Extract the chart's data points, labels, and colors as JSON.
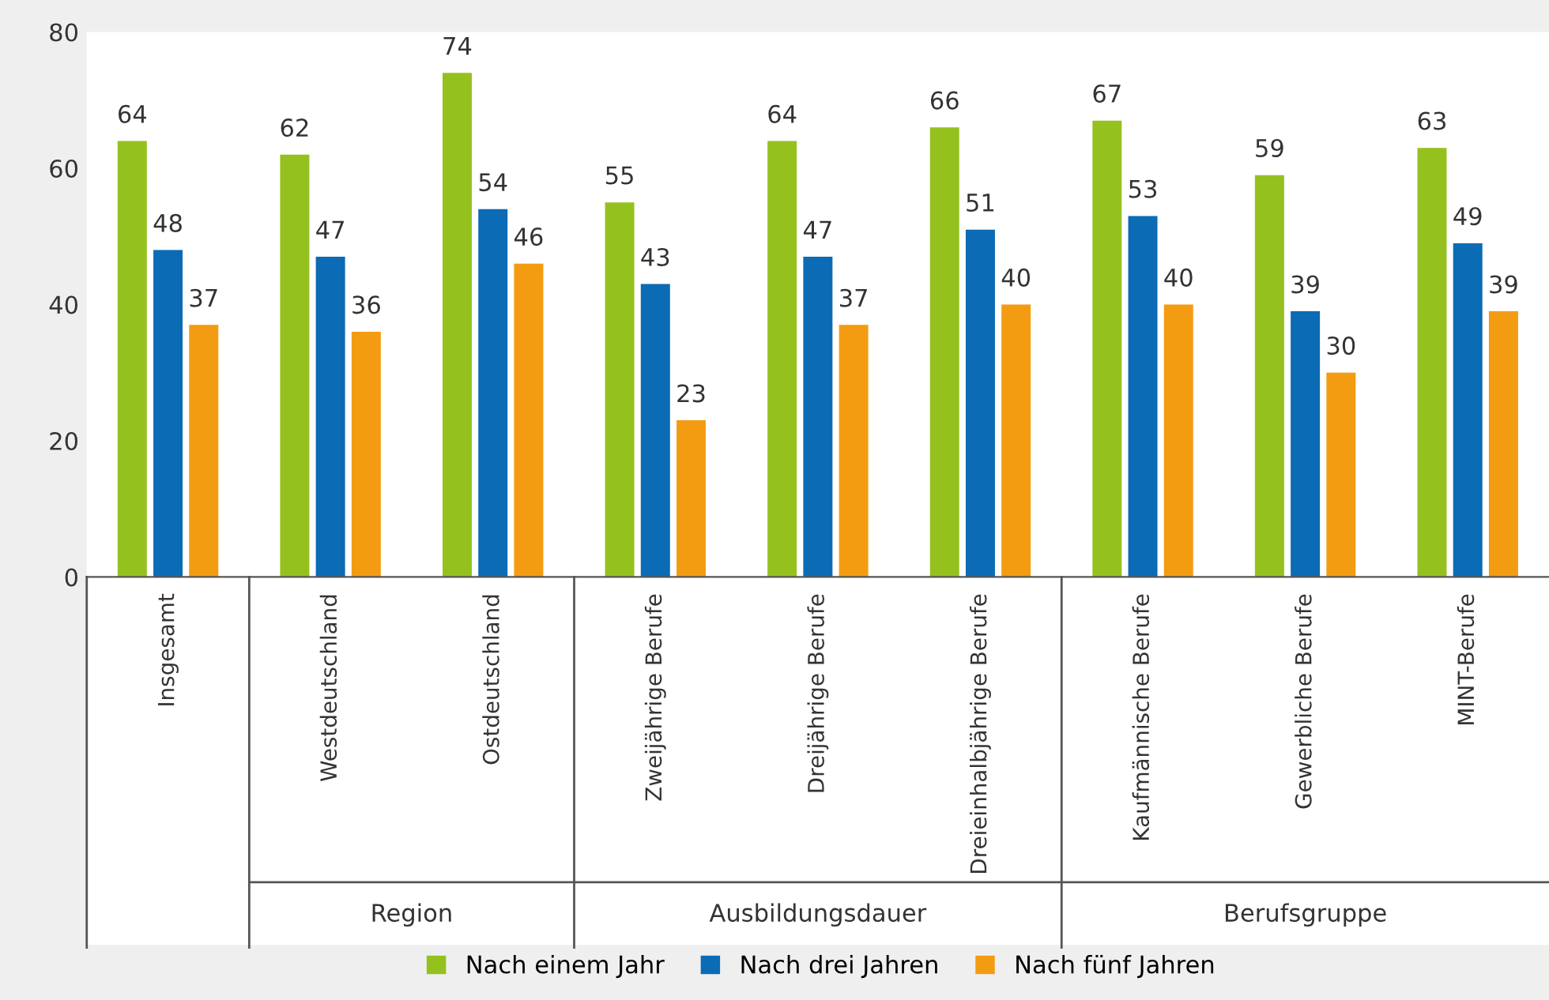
{
  "chart_data": {
    "type": "bar",
    "categories": [
      "Insgesamt",
      "Westdeutschland",
      "Ostdeutschland",
      "Zweijährige Berufe",
      "Dreijährige Berufe",
      "Dreieinhalbjährige Berufe",
      "Kaufmännische Berufe",
      "Gewerbliche Berufe",
      "MINT-Berufe"
    ],
    "series": [
      {
        "name": "Nach einem Jahr",
        "color": "#95c11f",
        "values": [
          64,
          62,
          74,
          55,
          64,
          66,
          67,
          59,
          63
        ]
      },
      {
        "name": "Nach drei Jahren",
        "color": "#0b6bb5",
        "values": [
          48,
          47,
          54,
          43,
          47,
          51,
          53,
          39,
          49
        ]
      },
      {
        "name": "Nach fünf Jahren",
        "color": "#f39c12",
        "values": [
          37,
          36,
          46,
          23,
          37,
          40,
          40,
          30,
          39
        ]
      }
    ],
    "annotations": [
      "Region",
      "Ausbildungsdauer",
      "Berufsgruppe"
    ],
    "ylim": [
      0,
      80
    ],
    "yticks": [
      0,
      20,
      40,
      60,
      80
    ],
    "data_labels": true,
    "grid": false,
    "legend": "bottom"
  }
}
